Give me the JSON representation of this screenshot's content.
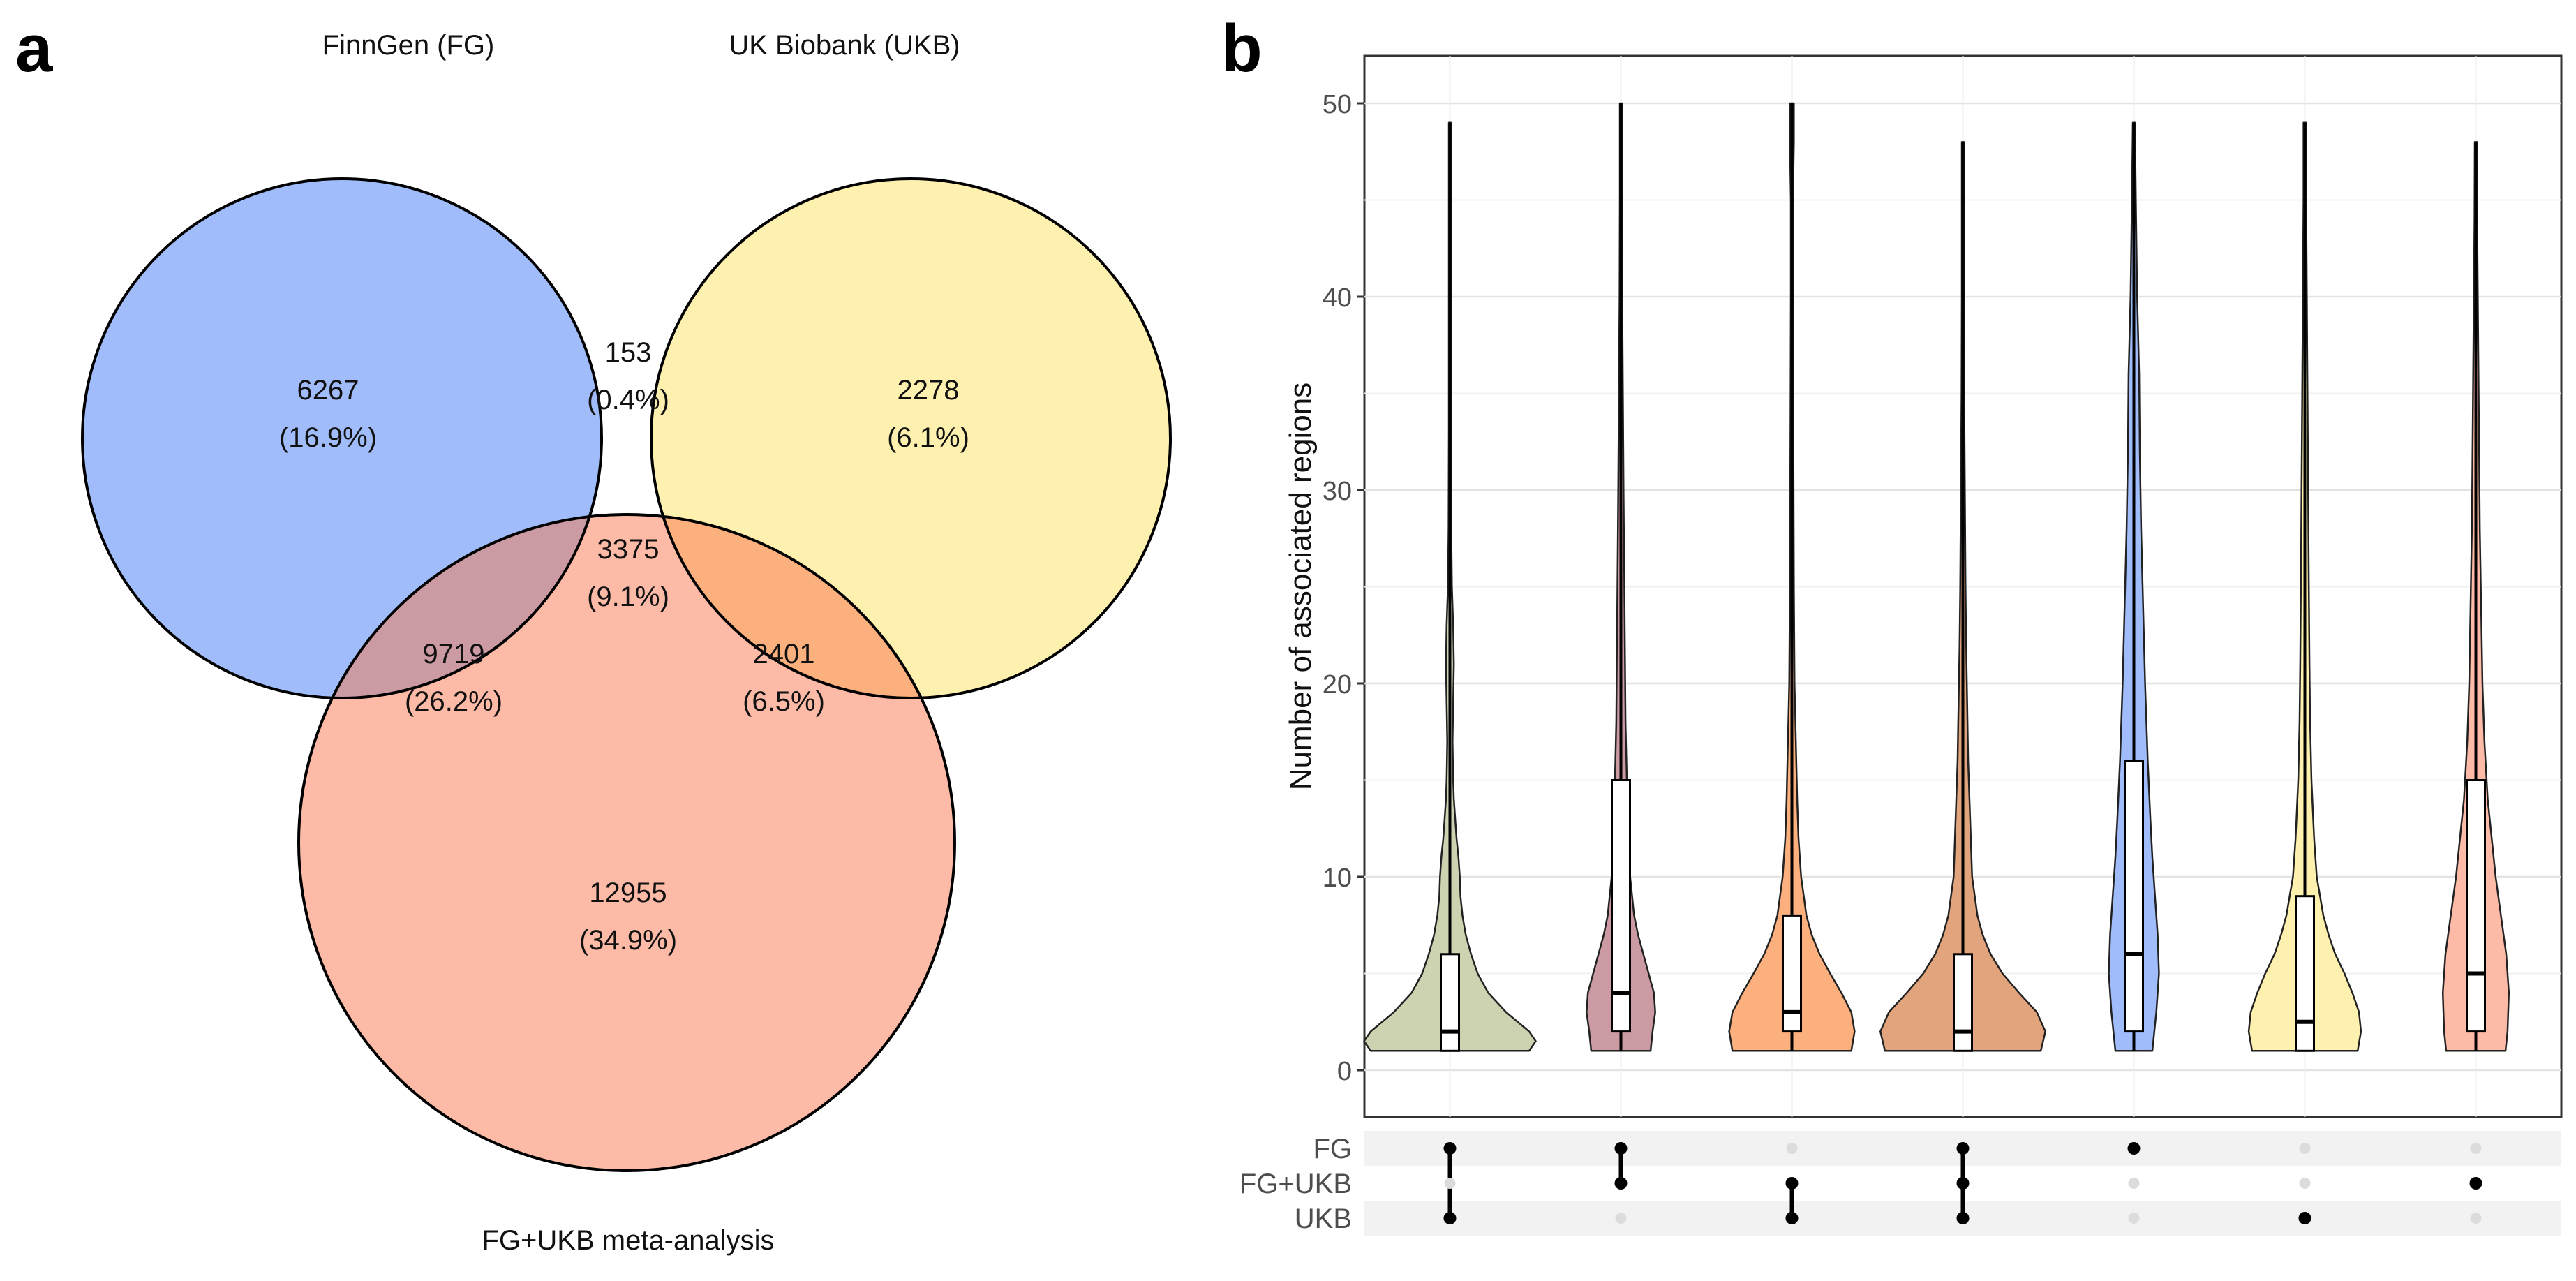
{
  "panels": {
    "a": "a",
    "b": "b"
  },
  "colors": {
    "fg": "#a1bcfb",
    "ukb": "#fef0ae",
    "meta": "#fdbba7",
    "fg_ukb": "#cdd3b0",
    "fg_meta": "#cb9aa3",
    "ukb_meta": "#fcb07d",
    "all": "#e2a47d"
  },
  "chart_data": [
    {
      "type": "venn",
      "sets": [
        {
          "key": "fg",
          "label": "FinnGen (FG)"
        },
        {
          "key": "ukb",
          "label": "UK Biobank (UKB)"
        },
        {
          "key": "meta",
          "label": "FG+UKB meta-analysis"
        }
      ],
      "regions": [
        {
          "id": "fg_only",
          "sets": [
            "fg"
          ],
          "count": "6267",
          "percent": "(16.9%)"
        },
        {
          "id": "fg_ukb",
          "sets": [
            "fg",
            "ukb"
          ],
          "count": "153",
          "percent": "(0.4%)"
        },
        {
          "id": "ukb_only",
          "sets": [
            "ukb"
          ],
          "count": "2278",
          "percent": "(6.1%)"
        },
        {
          "id": "all_three",
          "sets": [
            "fg",
            "ukb",
            "meta"
          ],
          "count": "3375",
          "percent": "(9.1%)"
        },
        {
          "id": "fg_meta",
          "sets": [
            "fg",
            "meta"
          ],
          "count": "9719",
          "percent": "(26.2%)"
        },
        {
          "id": "ukb_meta",
          "sets": [
            "ukb",
            "meta"
          ],
          "count": "2401",
          "percent": "(6.5%)"
        },
        {
          "id": "meta_only",
          "sets": [
            "meta"
          ],
          "count": "12955",
          "percent": "(34.9%)"
        }
      ]
    },
    {
      "type": "violin",
      "ylabel": "Number of associated regions",
      "ylim": [
        0,
        50
      ],
      "yticks": [
        0,
        10,
        20,
        30,
        40,
        50
      ],
      "grid": true,
      "matrix_rows": [
        "FG",
        "FG+UKB",
        "UKB"
      ],
      "groups": [
        {
          "name": "FG & UKB",
          "color_key": "fg_ukb",
          "membership": [
            1,
            0,
            1
          ],
          "min": 1,
          "max": 49,
          "q1": 1,
          "median": 2,
          "q3": 6,
          "density": [
            [
              1,
              120
            ],
            [
              1.5,
              130
            ],
            [
              2,
              120
            ],
            [
              3,
              85
            ],
            [
              4,
              58
            ],
            [
              5,
              42
            ],
            [
              6,
              32
            ],
            [
              7,
              24
            ],
            [
              8,
              19
            ],
            [
              9,
              16
            ],
            [
              10,
              15
            ],
            [
              11,
              13
            ],
            [
              12,
              10
            ],
            [
              13,
              8
            ],
            [
              14,
              6
            ],
            [
              15,
              5
            ],
            [
              17,
              4
            ],
            [
              19,
              5
            ],
            [
              21,
              6
            ],
            [
              23,
              5
            ],
            [
              25,
              3
            ],
            [
              28,
              2
            ],
            [
              33,
              1.5
            ],
            [
              40,
              1
            ],
            [
              49,
              1
            ]
          ]
        },
        {
          "name": "FG & meta",
          "color_key": "fg_meta",
          "membership": [
            1,
            1,
            0
          ],
          "min": 1,
          "max": 50,
          "q1": 2,
          "median": 4,
          "q3": 15,
          "density": [
            [
              1,
              45
            ],
            [
              2,
              48
            ],
            [
              3,
              52
            ],
            [
              4,
              50
            ],
            [
              5,
              42
            ],
            [
              6,
              34
            ],
            [
              7,
              26
            ],
            [
              8,
              20
            ],
            [
              10,
              14
            ],
            [
              12,
              11
            ],
            [
              15,
              9
            ],
            [
              18,
              7
            ],
            [
              22,
              6
            ],
            [
              26,
              5
            ],
            [
              30,
              4
            ],
            [
              35,
              3
            ],
            [
              40,
              2
            ],
            [
              45,
              1.5
            ],
            [
              50,
              1
            ]
          ]
        },
        {
          "name": "meta & UKB",
          "color_key": "ukb_meta",
          "membership": [
            0,
            1,
            1
          ],
          "min": 1,
          "max": 50,
          "q1": 2,
          "median": 3,
          "q3": 8,
          "density": [
            [
              1,
              90
            ],
            [
              2,
              95
            ],
            [
              3,
              90
            ],
            [
              4,
              75
            ],
            [
              5,
              58
            ],
            [
              6,
              42
            ],
            [
              7,
              30
            ],
            [
              8,
              22
            ],
            [
              10,
              14
            ],
            [
              12,
              10
            ],
            [
              14,
              8
            ],
            [
              17,
              6
            ],
            [
              20,
              4
            ],
            [
              25,
              3
            ],
            [
              30,
              2.5
            ],
            [
              35,
              2
            ],
            [
              40,
              1.5
            ],
            [
              45,
              1.5
            ],
            [
              48,
              3
            ],
            [
              50,
              3
            ]
          ]
        },
        {
          "name": "all three",
          "color_key": "all",
          "membership": [
            1,
            1,
            1
          ],
          "min": 1,
          "max": 48,
          "q1": 1,
          "median": 2,
          "q3": 6,
          "density": [
            [
              1,
              118
            ],
            [
              2,
              125
            ],
            [
              3,
              112
            ],
            [
              4,
              85
            ],
            [
              5,
              60
            ],
            [
              6,
              42
            ],
            [
              7,
              30
            ],
            [
              8,
              22
            ],
            [
              10,
              14
            ],
            [
              12,
              12
            ],
            [
              14,
              10
            ],
            [
              16,
              8
            ],
            [
              18,
              7
            ],
            [
              20,
              6
            ],
            [
              22,
              5
            ],
            [
              25,
              4
            ],
            [
              30,
              3
            ],
            [
              35,
              2
            ],
            [
              40,
              1.5
            ],
            [
              48,
              1
            ]
          ]
        },
        {
          "name": "FG only",
          "color_key": "fg",
          "membership": [
            1,
            0,
            0
          ],
          "min": 1,
          "max": 49,
          "q1": 2,
          "median": 6,
          "q3": 16,
          "density": [
            [
              1,
              28
            ],
            [
              3,
              34
            ],
            [
              5,
              38
            ],
            [
              7,
              36
            ],
            [
              9,
              32
            ],
            [
              11,
              28
            ],
            [
              13,
              25
            ],
            [
              16,
              21
            ],
            [
              20,
              17
            ],
            [
              24,
              14
            ],
            [
              28,
              11
            ],
            [
              32,
              9
            ],
            [
              36,
              8
            ],
            [
              40,
              5
            ],
            [
              45,
              3
            ],
            [
              49,
              1
            ]
          ]
        },
        {
          "name": "UKB only",
          "color_key": "ukb",
          "membership": [
            0,
            0,
            1
          ],
          "min": 1,
          "max": 49,
          "q1": 1,
          "median": 2.5,
          "q3": 9,
          "density": [
            [
              1,
              80
            ],
            [
              2,
              85
            ],
            [
              3,
              82
            ],
            [
              4,
              72
            ],
            [
              5,
              60
            ],
            [
              6,
              46
            ],
            [
              7,
              36
            ],
            [
              8,
              28
            ],
            [
              10,
              18
            ],
            [
              12,
              14
            ],
            [
              15,
              10
            ],
            [
              18,
              8
            ],
            [
              21,
              7
            ],
            [
              25,
              6
            ],
            [
              30,
              5
            ],
            [
              35,
              4
            ],
            [
              40,
              3
            ],
            [
              45,
              2
            ],
            [
              49,
              2
            ]
          ]
        },
        {
          "name": "meta only",
          "color_key": "meta",
          "membership": [
            0,
            1,
            0
          ],
          "min": 1,
          "max": 48,
          "q1": 2,
          "median": 5,
          "q3": 15,
          "density": [
            [
              1,
              45
            ],
            [
              2,
              48
            ],
            [
              4,
              50
            ],
            [
              6,
              46
            ],
            [
              8,
              38
            ],
            [
              10,
              30
            ],
            [
              12,
              24
            ],
            [
              14,
              18
            ],
            [
              17,
              13
            ],
            [
              20,
              10
            ],
            [
              24,
              8
            ],
            [
              28,
              6
            ],
            [
              32,
              5
            ],
            [
              36,
              4
            ],
            [
              40,
              3
            ],
            [
              44,
              2
            ],
            [
              48,
              1
            ]
          ]
        }
      ]
    }
  ]
}
